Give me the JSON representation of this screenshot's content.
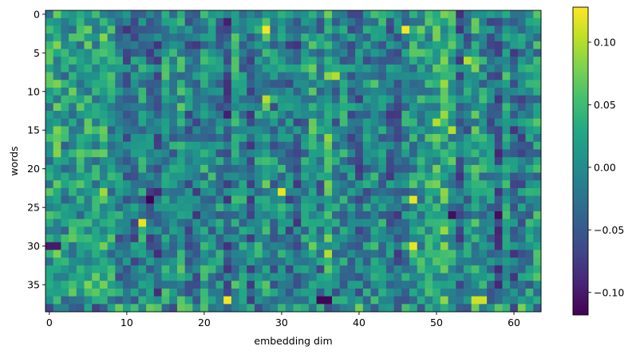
{
  "chart_data": {
    "type": "heatmap",
    "title": "",
    "xlabel": "embedding dim",
    "ylabel": "words",
    "n_cols": 64,
    "n_rows": 39,
    "x_ticks": [
      0,
      10,
      20,
      30,
      40,
      50,
      60
    ],
    "y_ticks": [
      0,
      5,
      10,
      15,
      20,
      25,
      30,
      35
    ],
    "colormap": "viridis",
    "value_range": [
      -0.118,
      0.128
    ],
    "colorbar": {
      "ticks": [
        0.1,
        0.05,
        0.0,
        -0.05,
        -0.1
      ],
      "tick_labels": [
        "0.10",
        "0.05",
        "0.00",
        "−0.05",
        "−0.10"
      ]
    },
    "column_bias": [
      0.02,
      0.03,
      0.01,
      0.02,
      0.015,
      0.025,
      0.02,
      0.04,
      0.01,
      -0.01,
      -0.035,
      -0.02,
      0.0,
      -0.025,
      -0.04,
      0.01,
      -0.005,
      0.015,
      -0.02,
      -0.03,
      0.005,
      0.0,
      -0.01,
      -0.045,
      0.01,
      -0.005,
      -0.03,
      0.0,
      0.02,
      -0.01,
      0.005,
      -0.025,
      -0.03,
      0.0,
      0.025,
      -0.015,
      0.035,
      -0.01,
      0.0,
      -0.02,
      -0.03,
      -0.01,
      0.01,
      0.0,
      -0.025,
      -0.035,
      0.0,
      0.01,
      0.02,
      0.025,
      0.03,
      0.04,
      0.015,
      -0.035,
      -0.01,
      0.025,
      0.005,
      -0.015,
      -0.04,
      0.01,
      -0.03,
      -0.02,
      0.0,
      0.01
    ],
    "highlights": [
      {
        "row": 2,
        "col": 28,
        "value": 0.125
      },
      {
        "row": 2,
        "col": 46,
        "value": 0.125
      },
      {
        "row": 24,
        "col": 13,
        "value": -0.118
      },
      {
        "row": 27,
        "col": 12,
        "value": 0.12
      },
      {
        "row": 37,
        "col": 23,
        "value": 0.125
      },
      {
        "row": 37,
        "col": 35,
        "value": -0.115
      },
      {
        "row": 37,
        "col": 36,
        "value": -0.115
      },
      {
        "row": 23,
        "col": 30,
        "value": 0.12
      },
      {
        "row": 24,
        "col": 47,
        "value": 0.12
      },
      {
        "row": 30,
        "col": 47,
        "value": 0.12
      },
      {
        "row": 37,
        "col": 55,
        "value": 0.11
      },
      {
        "row": 37,
        "col": 56,
        "value": 0.11
      },
      {
        "row": 14,
        "col": 50,
        "value": 0.1
      },
      {
        "row": 15,
        "col": 52,
        "value": 0.1
      },
      {
        "row": 6,
        "col": 54,
        "value": 0.1
      },
      {
        "row": 8,
        "col": 37,
        "value": 0.1
      },
      {
        "row": 11,
        "col": 28,
        "value": 0.1
      },
      {
        "row": 31,
        "col": 36,
        "value": 0.1
      },
      {
        "row": 26,
        "col": 58,
        "value": -0.11
      },
      {
        "row": 26,
        "col": 52,
        "value": -0.11
      },
      {
        "row": 30,
        "col": 0,
        "value": -0.1
      },
      {
        "row": 30,
        "col": 1,
        "value": -0.1
      }
    ]
  }
}
